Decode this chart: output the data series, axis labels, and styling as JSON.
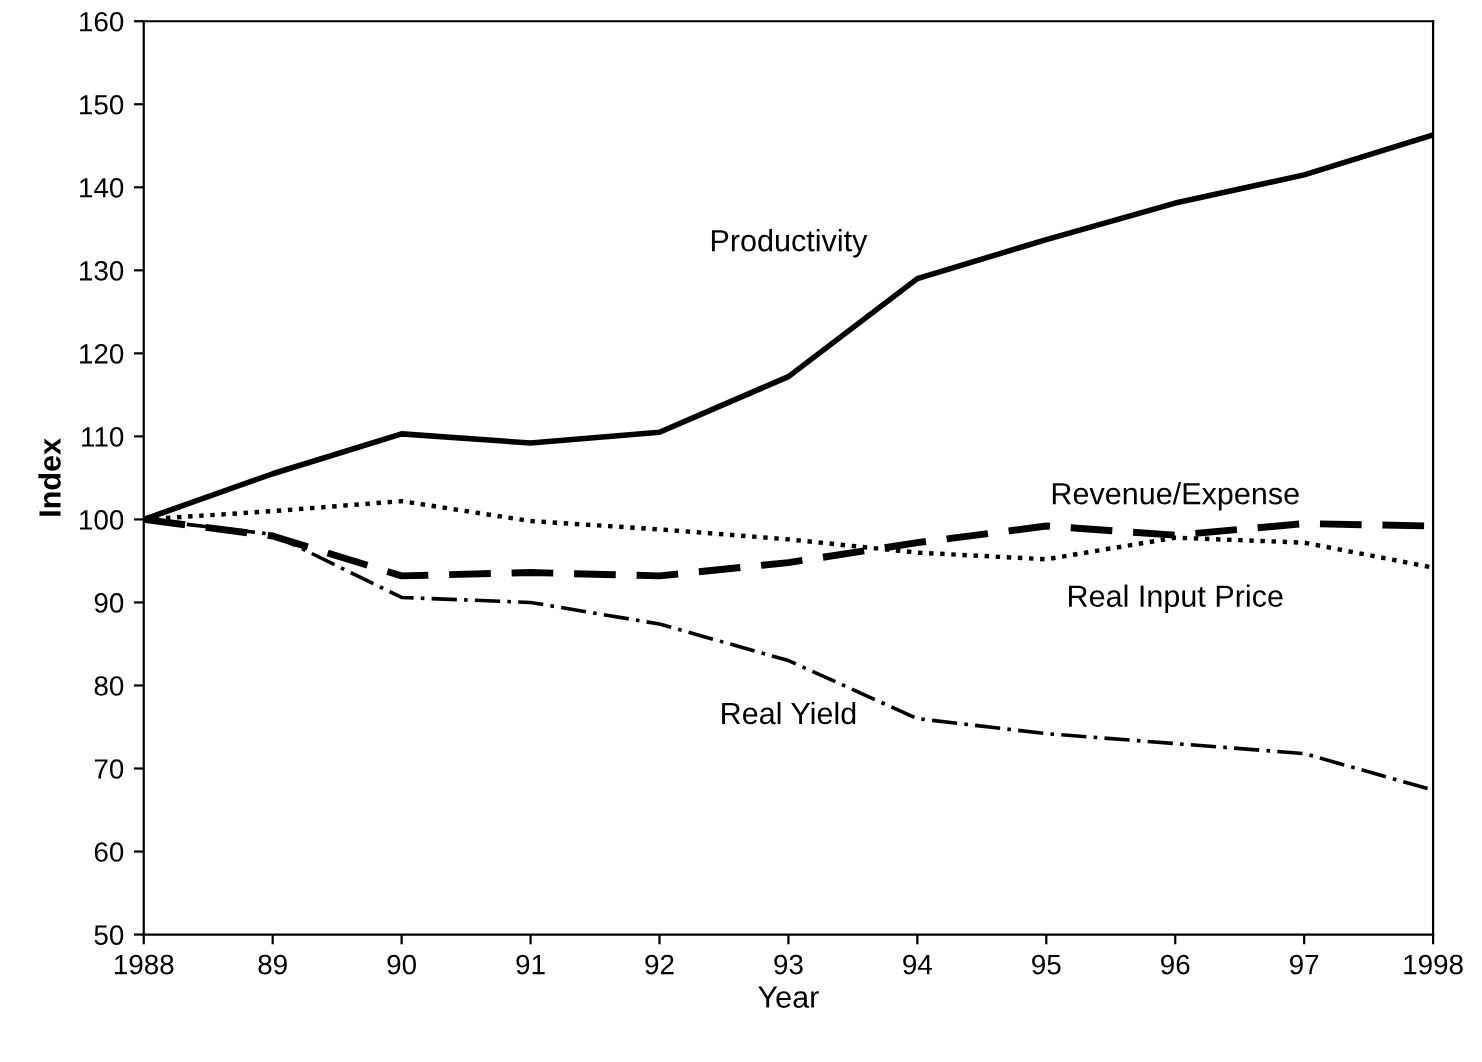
{
  "chart_data": {
    "type": "line",
    "xlabel": "Year",
    "ylabel": "Index",
    "x": [
      1988,
      1989,
      1990,
      1991,
      1992,
      1993,
      1994,
      1995,
      1996,
      1997,
      1998
    ],
    "series": [
      {
        "name": "Productivity",
        "color": "#000000",
        "line_style": "solid",
        "values": [
          100,
          105.5,
          110.3,
          109.2,
          110.5,
          117.2,
          129,
          133.7,
          138.1,
          141.5,
          146.3
        ]
      },
      {
        "name": "Revenue/Expense",
        "color": "#000000",
        "line_style": "dashed",
        "values": [
          100,
          98,
          93.2,
          93.6,
          93.2,
          94.8,
          97.2,
          99.2,
          98.1,
          99.5,
          99.2
        ]
      },
      {
        "name": "Real Input Price",
        "color": "#000000",
        "line_style": "dotted",
        "values": [
          100,
          101,
          102.2,
          99.8,
          98.8,
          97.6,
          96,
          95.2,
          97.8,
          97.2,
          94.2
        ]
      },
      {
        "name": "Real Yield",
        "color": "#000000",
        "line_style": "dashdot",
        "values": [
          100,
          98.2,
          90.6,
          90,
          87.4,
          83,
          76,
          74.2,
          73,
          71.8,
          67.4
        ]
      }
    ],
    "xlim": [
      1988,
      1998
    ],
    "xticks": [
      1988,
      {
        "value": 1989,
        "label": "89"
      },
      {
        "value": 1990,
        "label": "90"
      },
      {
        "value": 1991,
        "label": "91"
      },
      {
        "value": 1992,
        "label": "92"
      },
      {
        "value": 1993,
        "label": "93"
      },
      {
        "value": 1994,
        "label": "94"
      },
      {
        "value": 1995,
        "label": "95"
      },
      {
        "value": 1996,
        "label": "96"
      },
      {
        "value": 1997,
        "label": "97"
      },
      1998
    ],
    "ylim": [
      50,
      160
    ],
    "yticks": [
      50,
      60,
      70,
      80,
      90,
      100,
      110,
      120,
      130,
      140,
      150,
      160
    ],
    "grid": false,
    "legend": false
  }
}
